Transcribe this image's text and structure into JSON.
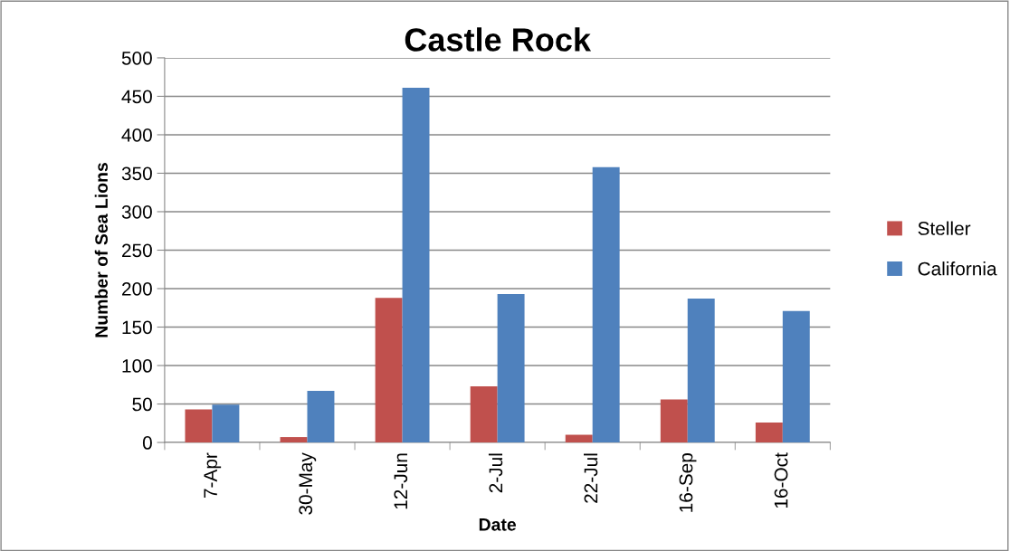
{
  "chart_data": {
    "type": "bar",
    "title": "Castle Rock",
    "xlabel": "Date",
    "ylabel": "Number of Sea Lions",
    "categories": [
      "7-Apr",
      "30-May",
      "12-Jun",
      "2-Jul",
      "22-Jul",
      "16-Sep",
      "16-Oct"
    ],
    "series": [
      {
        "name": "Steller",
        "color": "#c0504d",
        "values": [
          43,
          7,
          188,
          73,
          10,
          56,
          26
        ]
      },
      {
        "name": "California",
        "color": "#4f81bd",
        "values": [
          49,
          67,
          461,
          193,
          358,
          187,
          171
        ]
      }
    ],
    "ylim": [
      0,
      500
    ],
    "yticks": [
      0,
      50,
      100,
      150,
      200,
      250,
      300,
      350,
      400,
      450,
      500
    ],
    "grid": "y",
    "legend": "right"
  }
}
